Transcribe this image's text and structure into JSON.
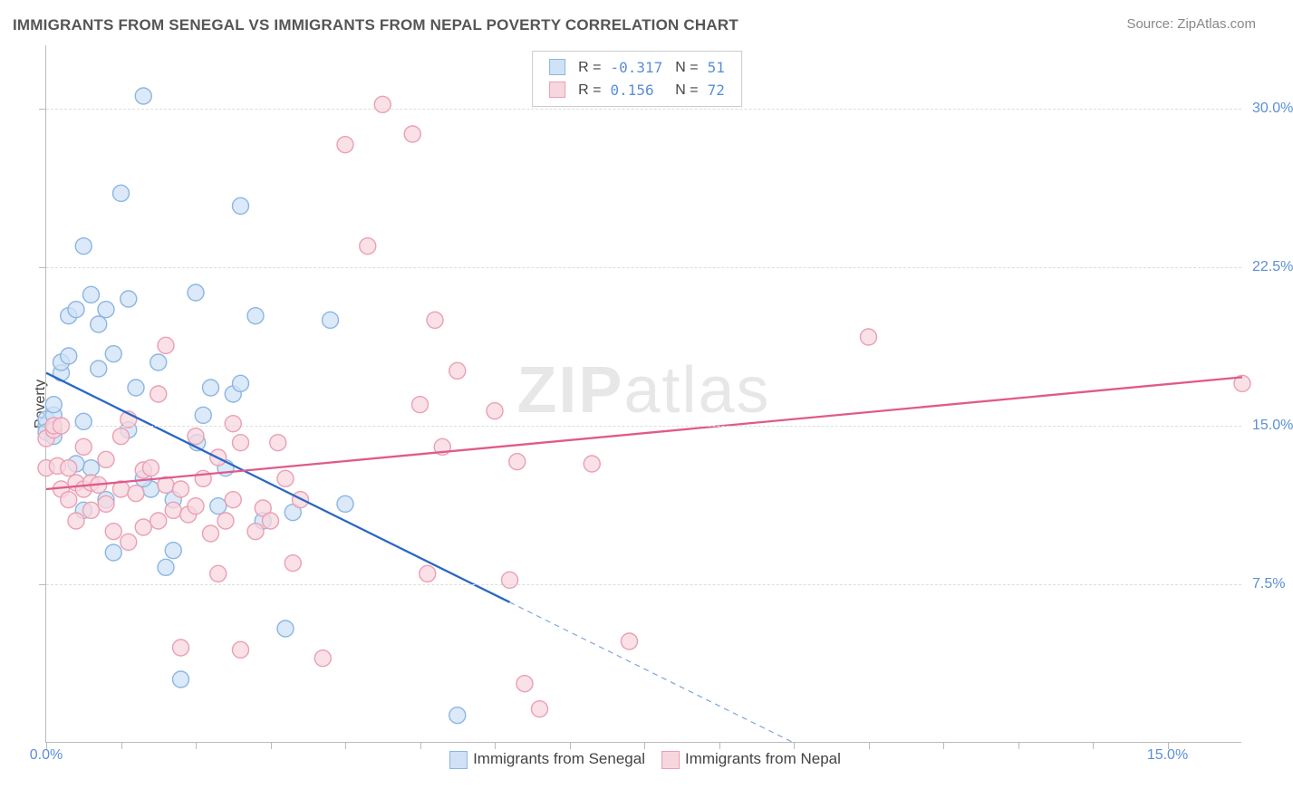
{
  "title": "IMMIGRANTS FROM SENEGAL VS IMMIGRANTS FROM NEPAL POVERTY CORRELATION CHART",
  "source": "Source: ZipAtlas.com",
  "ylabel": "Poverty",
  "watermark_bold": "ZIP",
  "watermark_light": "atlas",
  "chart": {
    "type": "scatter",
    "xlim": [
      0,
      16
    ],
    "ylim": [
      0,
      33
    ],
    "yticks": [
      7.5,
      15.0,
      22.5,
      30.0
    ],
    "ytick_labels": [
      "7.5%",
      "15.0%",
      "22.5%",
      "30.0%"
    ],
    "xticks_minor": [
      0,
      1,
      2,
      3,
      4,
      5,
      6,
      7,
      8,
      9,
      10,
      11,
      12,
      13,
      14,
      15
    ],
    "xtick_labels": {
      "0": "0.0%",
      "15": "15.0%"
    },
    "background_color": "#ffffff",
    "grid_color": "#dddddd",
    "axis_color": "#bbbbbb",
    "marker_radius": 9,
    "marker_stroke_width": 1.4,
    "line_width": 2.3,
    "series": [
      {
        "name": "Immigrants from Senegal",
        "fill": "#cfe2f6",
        "stroke": "#8bb6e3",
        "line_color": "#2867c4",
        "R": "-0.317",
        "N": "51",
        "regression": {
          "x1": 0,
          "y1": 17.5,
          "x2": 10,
          "y2": 0,
          "extrapolate": true
        },
        "points": [
          [
            0.0,
            15.0
          ],
          [
            0.0,
            15.3
          ],
          [
            0.1,
            15.5
          ],
          [
            0.0,
            14.7
          ],
          [
            0.1,
            16.0
          ],
          [
            0.1,
            14.5
          ],
          [
            0.2,
            17.5
          ],
          [
            0.2,
            18.0
          ],
          [
            0.3,
            18.3
          ],
          [
            0.3,
            20.2
          ],
          [
            0.4,
            20.5
          ],
          [
            0.5,
            23.5
          ],
          [
            0.6,
            21.2
          ],
          [
            0.7,
            19.8
          ],
          [
            0.5,
            15.2
          ],
          [
            0.6,
            13.0
          ],
          [
            0.7,
            17.7
          ],
          [
            0.8,
            20.5
          ],
          [
            0.9,
            18.4
          ],
          [
            1.0,
            26.0
          ],
          [
            1.1,
            21.0
          ],
          [
            1.2,
            16.8
          ],
          [
            1.3,
            30.6
          ],
          [
            1.4,
            12.0
          ],
          [
            1.5,
            18.0
          ],
          [
            1.6,
            8.3
          ],
          [
            1.7,
            11.5
          ],
          [
            1.7,
            9.1
          ],
          [
            1.8,
            3.0
          ],
          [
            2.0,
            21.3
          ],
          [
            2.02,
            14.2
          ],
          [
            2.1,
            15.5
          ],
          [
            2.2,
            16.8
          ],
          [
            2.3,
            11.2
          ],
          [
            2.5,
            16.5
          ],
          [
            2.6,
            25.4
          ],
          [
            2.6,
            17.0
          ],
          [
            2.8,
            20.2
          ],
          [
            2.9,
            10.5
          ],
          [
            3.2,
            5.4
          ],
          [
            3.3,
            10.9
          ],
          [
            3.8,
            20.0
          ],
          [
            4.0,
            11.3
          ],
          [
            5.5,
            1.3
          ],
          [
            0.8,
            11.5
          ],
          [
            0.9,
            9.0
          ],
          [
            0.4,
            13.2
          ],
          [
            0.5,
            11.0
          ],
          [
            1.1,
            14.8
          ],
          [
            1.3,
            12.5
          ],
          [
            2.4,
            13.0
          ]
        ]
      },
      {
        "name": "Immigrants from Nepal",
        "fill": "#f8d6df",
        "stroke": "#eaa0b2",
        "line_color": "#e05a8a",
        "R": "0.156",
        "N": "72",
        "regression": {
          "x1": 0,
          "y1": 12.0,
          "x2": 16,
          "y2": 17.3,
          "extrapolate": false
        },
        "points": [
          [
            0.0,
            14.4
          ],
          [
            0.0,
            13.0
          ],
          [
            0.1,
            14.8
          ],
          [
            0.1,
            15.0
          ],
          [
            0.15,
            13.1
          ],
          [
            0.2,
            15.0
          ],
          [
            0.2,
            12.0
          ],
          [
            0.3,
            11.5
          ],
          [
            0.3,
            13.0
          ],
          [
            0.4,
            10.5
          ],
          [
            0.4,
            12.3
          ],
          [
            0.5,
            14.0
          ],
          [
            0.5,
            12.0
          ],
          [
            0.6,
            12.3
          ],
          [
            0.6,
            11.0
          ],
          [
            0.7,
            12.2
          ],
          [
            0.8,
            11.3
          ],
          [
            0.8,
            13.4
          ],
          [
            0.9,
            10.0
          ],
          [
            1.0,
            12.0
          ],
          [
            1.0,
            14.5
          ],
          [
            1.1,
            9.5
          ],
          [
            1.1,
            15.3
          ],
          [
            1.2,
            11.8
          ],
          [
            1.3,
            12.9
          ],
          [
            1.3,
            10.2
          ],
          [
            1.4,
            13.0
          ],
          [
            1.5,
            10.5
          ],
          [
            1.5,
            16.5
          ],
          [
            1.6,
            12.2
          ],
          [
            1.6,
            18.8
          ],
          [
            1.7,
            11.0
          ],
          [
            1.8,
            12.0
          ],
          [
            1.8,
            4.5
          ],
          [
            1.9,
            10.8
          ],
          [
            2.0,
            14.5
          ],
          [
            2.0,
            11.2
          ],
          [
            2.1,
            12.5
          ],
          [
            2.2,
            9.9
          ],
          [
            2.3,
            13.5
          ],
          [
            2.3,
            8.0
          ],
          [
            2.4,
            10.5
          ],
          [
            2.5,
            15.1
          ],
          [
            2.5,
            11.5
          ],
          [
            2.6,
            14.2
          ],
          [
            2.6,
            4.4
          ],
          [
            2.8,
            10.0
          ],
          [
            2.9,
            11.1
          ],
          [
            3.0,
            10.5
          ],
          [
            3.1,
            14.2
          ],
          [
            3.2,
            12.5
          ],
          [
            3.3,
            8.5
          ],
          [
            3.4,
            11.5
          ],
          [
            3.7,
            4.0
          ],
          [
            4.0,
            28.3
          ],
          [
            4.3,
            23.5
          ],
          [
            4.5,
            30.2
          ],
          [
            4.9,
            28.8
          ],
          [
            5.0,
            16.0
          ],
          [
            5.2,
            20.0
          ],
          [
            5.1,
            8.0
          ],
          [
            5.5,
            17.6
          ],
          [
            5.3,
            14.0
          ],
          [
            6.0,
            15.7
          ],
          [
            6.2,
            7.7
          ],
          [
            6.3,
            13.3
          ],
          [
            6.4,
            2.8
          ],
          [
            6.6,
            1.6
          ],
          [
            7.3,
            13.2
          ],
          [
            7.8,
            4.8
          ],
          [
            11.0,
            19.2
          ],
          [
            16.0,
            17.0
          ]
        ]
      }
    ]
  },
  "legend_bottom": [
    {
      "label": "Immigrants from Senegal",
      "fill": "#cfe2f6",
      "stroke": "#8bb6e3"
    },
    {
      "label": "Immigrants from Nepal",
      "fill": "#f8d6df",
      "stroke": "#eaa0b2"
    }
  ],
  "colors": {
    "title": "#555555",
    "source": "#888888",
    "tick_text": "#5b8fd6"
  }
}
